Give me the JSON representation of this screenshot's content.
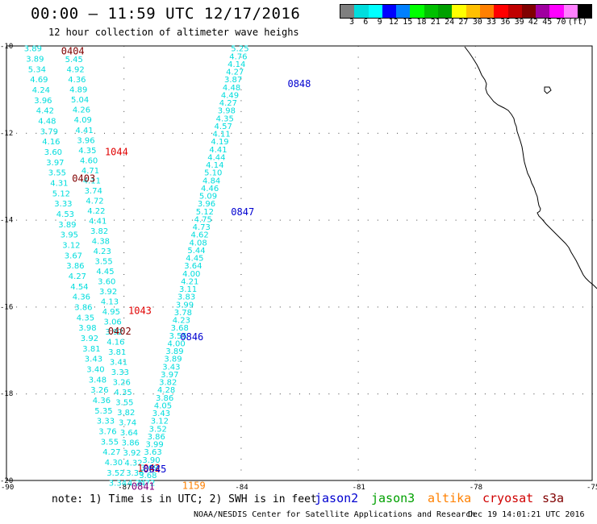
{
  "title": "00:00 – 11:59 UTC 12/17/2016",
  "subtitle": "12 hour collection of altimeter wave heighs",
  "colorbar": {
    "colors": [
      "#7f7f7f",
      "#00dddd",
      "#00ffff",
      "#0000ff",
      "#0080ff",
      "#00ff00",
      "#00c000",
      "#00a000",
      "#ffff00",
      "#ffc000",
      "#ff8000",
      "#ff0000",
      "#c00000",
      "#800000",
      "#a000a0",
      "#ff00ff",
      "#ff80ff",
      "#000000"
    ],
    "labels": [
      "3",
      "6",
      "9",
      "12",
      "15",
      "18",
      "21",
      "24",
      "27",
      "30",
      "33",
      "36",
      "39",
      "42",
      "45",
      "70",
      "(ft)"
    ]
  },
  "axes": {
    "lat_labels": [
      "-10",
      "-12",
      "-14",
      "-16",
      "-18",
      "-20"
    ],
    "lon_labels": [
      "-90",
      "-87",
      "-84",
      "-81",
      "-78",
      "-75"
    ]
  },
  "note": "note: 1) Time is in UTC; 2) SWH is in feet",
  "legend": [
    {
      "label": "jason2",
      "color": "#0000d0"
    },
    {
      "label": "jason3",
      "color": "#00a000"
    },
    {
      "label": "altika",
      "color": "#ff8000"
    },
    {
      "label": "cryosat",
      "color": "#d00000"
    },
    {
      "label": "s3a",
      "color": "#800000"
    }
  ],
  "credit": "NOAA/NESDIS Center for Satellite Applications and Research",
  "stamp": "Dec 19 14:01:21 UTC 2016",
  "track_a_values": [
    "3.89",
    "3.89",
    "5.34",
    "4.69",
    "4.24",
    "3.96",
    "4.42",
    "4.48",
    "3.79",
    "4.16",
    "3.60",
    "3.97",
    "3.55",
    "4.31",
    "5.12",
    "3.33",
    "4.53",
    "3.89",
    "3.95",
    "3.12",
    "3.67",
    "3.86",
    "4.27",
    "4.54",
    "4.36",
    "3.86",
    "4.35",
    "3.98",
    "3.92",
    "3.81",
    "3.43",
    "3.40",
    "3.48",
    "3.26",
    "4.36",
    "5.35",
    "3.33",
    "3.76",
    "3.55",
    "4.27",
    "4.30",
    "3.52",
    "3.34"
  ],
  "track_b_values": [
    "5.45",
    "4.92",
    "4.36",
    "4.89",
    "5.04",
    "4.26",
    "4.09",
    "4.41",
    "3.96",
    "4.35",
    "4.60",
    "4.71",
    "4.11",
    "3.74",
    "4.72",
    "4.22",
    "4.41",
    "3.82",
    "4.38",
    "4.23",
    "3.55",
    "4.45",
    "3.60",
    "3.92",
    "4.13",
    "4.95",
    "3.06",
    "3.92",
    "4.16",
    "3.81",
    "3.41",
    "3.33",
    "3.26",
    "4.35",
    "3.55",
    "3.82",
    "3.74",
    "3.64",
    "3.86",
    "3.92",
    "4.32",
    "3.36",
    "4.24"
  ],
  "track_c_values": [
    "5.25",
    "4.76",
    "4.14",
    "4.27",
    "3.87",
    "4.48",
    "4.49",
    "4.27",
    "3.98",
    "4.35",
    "4.57",
    "4.11",
    "4.19",
    "4.41",
    "4.44",
    "4.14",
    "5.10",
    "4.84",
    "4.46",
    "5.09",
    "3.96",
    "5.12",
    "4.75",
    "4.73",
    "4.62",
    "4.08",
    "5.44",
    "4.45",
    "3.64",
    "4.00",
    "4.21",
    "3.11",
    "3.83",
    "3.99",
    "3.78",
    "4.23",
    "3.68",
    "3.55",
    "4.00",
    "3.89",
    "3.89",
    "3.43",
    "3.97",
    "3.82",
    "4.28",
    "3.86",
    "4.05",
    "3.43",
    "3.12",
    "3.52",
    "3.86",
    "3.99",
    "3.63",
    "3.90",
    "3.69",
    "3.68",
    "4.72"
  ],
  "time_labels": [
    {
      "text": "0404",
      "color": "#800000",
      "lat": -10.1,
      "lon": -88.6
    },
    {
      "text": "1044",
      "color": "#e00000",
      "lat": -12.42,
      "lon": -87.48
    },
    {
      "text": "0403",
      "color": "#800000",
      "lat": -13.03,
      "lon": -88.32
    },
    {
      "text": "1043",
      "color": "#e00000",
      "lat": -16.08,
      "lon": -86.88
    },
    {
      "text": "0402",
      "color": "#800000",
      "lat": -16.55,
      "lon": -87.4
    },
    {
      "text": "1042",
      "color": "#e00000",
      "lat": -19.7,
      "lon": -86.65
    },
    {
      "text": "0841",
      "color": "#800080",
      "lat": -20.12,
      "lon": -86.8
    },
    {
      "text": "0848",
      "color": "#0000d0",
      "lat": -10.85,
      "lon": -82.8
    },
    {
      "text": "0847",
      "color": "#0000d0",
      "lat": -13.8,
      "lon": -84.25
    },
    {
      "text": "0846",
      "color": "#0000d0",
      "lat": -16.68,
      "lon": -85.55
    },
    {
      "text": "0845",
      "color": "#0000d0",
      "lat": -19.72,
      "lon": -86.5
    },
    {
      "text": "1159",
      "color": "#ff8000",
      "lat": -20.1,
      "lon": -85.5
    }
  ]
}
